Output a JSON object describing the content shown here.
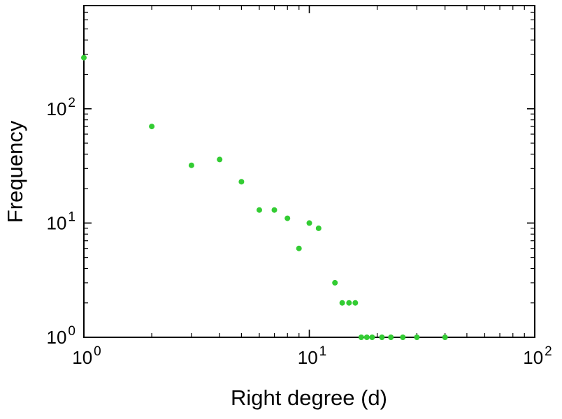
{
  "chart_data": {
    "type": "scatter",
    "title": "",
    "xlabel": "Right degree (d)",
    "ylabel": "Frequency",
    "xscale": "log",
    "yscale": "log",
    "xlim": [
      1,
      100
    ],
    "ylim": [
      1,
      800
    ],
    "x_major_ticks": [
      1,
      10,
      100
    ],
    "y_major_ticks": [
      1,
      10,
      100
    ],
    "tick_label_base": "10",
    "x_tick_exponents": [
      "0",
      "1",
      "2"
    ],
    "y_tick_exponents": [
      "0",
      "1",
      "2"
    ],
    "grid": false,
    "legend": null,
    "frame_color": "#000000",
    "point_color": "#33cc33",
    "point_radius": 4,
    "points": [
      [
        1,
        280
      ],
      [
        2,
        70
      ],
      [
        3,
        32
      ],
      [
        4,
        36
      ],
      [
        5,
        23
      ],
      [
        6,
        13
      ],
      [
        7,
        13
      ],
      [
        8,
        11
      ],
      [
        9,
        6
      ],
      [
        10,
        10
      ],
      [
        11,
        9
      ],
      [
        13,
        3
      ],
      [
        14,
        2
      ],
      [
        15,
        2
      ],
      [
        16,
        2
      ],
      [
        17,
        1
      ],
      [
        18,
        1
      ],
      [
        19,
        1
      ],
      [
        21,
        1
      ],
      [
        23,
        1
      ],
      [
        26,
        1
      ],
      [
        30,
        1
      ],
      [
        40,
        1
      ]
    ]
  }
}
